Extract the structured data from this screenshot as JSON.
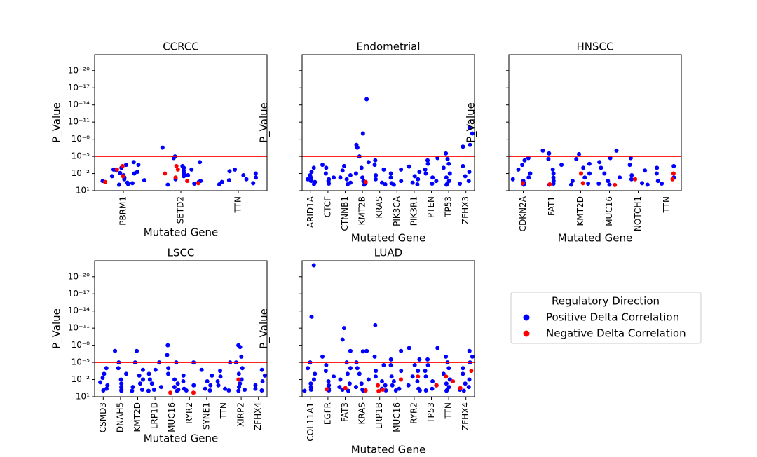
{
  "chart_data": [
    {
      "type": "strip",
      "title": "CCRCC",
      "xlabel": "Mutated Gene",
      "ylabel": "P_Value",
      "log_y": true,
      "inverted_y": true,
      "legend_title": "Regulatory Direction",
      "categories": [
        "PBRM1",
        "SETD2",
        "TTN"
      ],
      "ylim": [
        10,
        1.6e-23
      ],
      "yticks": [
        {
          "value": 1e-20,
          "label": "10⁻²⁰"
        },
        {
          "value": 1e-17,
          "label": "10⁻¹⁷"
        },
        {
          "value": 1e-14,
          "label": "10⁻¹⁴"
        },
        {
          "value": 1e-11,
          "label": "10⁻¹¹"
        },
        {
          "value": 1e-08,
          "label": "10⁻⁸"
        },
        {
          "value": 1e-05,
          "label": "10⁻⁵"
        },
        {
          "value": 0.01,
          "label": "10⁻²"
        },
        {
          "value": 10,
          "label": "10¹"
        }
      ],
      "hline": {
        "value": 1e-05,
        "color": "#ff0000"
      },
      "series": [
        {
          "name": "Positive Delta Correlation",
          "color": "#0000ff",
          "values": [
            [
              0.0001,
              0.0003,
              0.001,
              0.002,
              0.005,
              0.01,
              0.02,
              0.05,
              0.1,
              0.2,
              0.4,
              0.7,
              0.9,
              0.0003,
              0.003,
              0.008,
              0.03,
              0.15,
              0.5
            ],
            [
              3e-07,
              1e-05,
              2e-05,
              0.0001,
              0.0005,
              0.001,
              0.003,
              0.01,
              0.03,
              0.1,
              0.3,
              0.6,
              0.9,
              0.002,
              0.02,
              0.2
            ],
            [
              0.002,
              0.004,
              0.01,
              0.02,
              0.05,
              0.1,
              0.3,
              0.5,
              0.8,
              0.15
            ]
          ]
        },
        {
          "name": "Negative Delta Correlation",
          "color": "#ff0000",
          "values": [
            [
              0.0005,
              0.002,
              0.03,
              0.3
            ],
            [
              0.0005,
              0.002,
              0.01,
              0.05,
              0.2,
              0.5
            ],
            []
          ]
        }
      ]
    },
    {
      "type": "strip",
      "title": "Endometrial",
      "xlabel": "Mutated Gene",
      "ylabel": "P_Value",
      "log_y": true,
      "inverted_y": true,
      "categories": [
        "ARID1A",
        "CTCF",
        "CTNNB1",
        "KMT2B",
        "KRAS",
        "PIK3CA",
        "PIK3R1",
        "PTEN",
        "TP53",
        "ZFHX3"
      ],
      "ylim": [
        10,
        1.6e-23
      ],
      "yticks": [
        1e-20,
        1e-17,
        1e-14,
        1e-11,
        1e-08,
        1e-05,
        0.01,
        10
      ],
      "hline": {
        "value": 1e-05,
        "color": "#ff0000"
      },
      "series": [
        {
          "name": "Positive Delta Correlation",
          "color": "#0000ff",
          "values": [
            [
              0.001,
              0.005,
              0.02,
              0.1,
              0.3,
              0.7,
              0.05,
              0.2
            ],
            [
              0.0003,
              0.001,
              0.01,
              0.05,
              0.2,
              0.6,
              0.1
            ],
            [
              0.0005,
              0.003,
              0.02,
              0.1,
              0.4,
              0.8,
              0.05
            ],
            [
              1e-15,
              1e-09,
              1e-07,
              3e-07,
              1e-05,
              0.0001,
              0.001,
              0.01,
              0.05,
              0.2,
              0.5,
              0.9
            ],
            [
              5e-05,
              0.0003,
              0.002,
              0.02,
              0.1,
              0.4,
              0.8
            ],
            [
              0.002,
              0.01,
              0.05,
              0.2,
              0.5,
              0.9
            ],
            [
              0.0006,
              0.005,
              0.03,
              0.1,
              0.4,
              0.8
            ],
            [
              2e-05,
              5e-05,
              0.0002,
              0.002,
              0.01,
              0.05,
              0.2,
              0.6
            ],
            [
              3e-06,
              3e-05,
              0.0002,
              0.001,
              0.01,
              0.05,
              0.2,
              0.6,
              0.9
            ],
            [
              1e-10,
              1e-09,
              1e-07,
              2e-07,
              0.0005,
              0.005,
              0.03,
              0.2,
              0.6
            ]
          ]
        },
        {
          "name": "Negative Delta Correlation",
          "color": "#ff0000",
          "values": [
            [],
            [],
            [],
            [
              0.3
            ],
            [],
            [],
            [],
            [],
            [],
            []
          ]
        }
      ]
    },
    {
      "type": "strip",
      "title": "HNSCC",
      "xlabel": "Mutated Gene",
      "ylabel": "P_Value",
      "log_y": true,
      "inverted_y": true,
      "categories": [
        "CDKN2A",
        "FAT1",
        "KMT2D",
        "MUC16",
        "NOTCH1",
        "TTN"
      ],
      "ylim": [
        10,
        1.6e-23
      ],
      "yticks": [
        1e-20,
        1e-17,
        1e-14,
        1e-11,
        1e-08,
        1e-05,
        0.01,
        10
      ],
      "hline": {
        "value": 1e-05,
        "color": "#ff0000"
      },
      "series": [
        {
          "name": "Positive Delta Correlation",
          "color": "#0000ff",
          "values": [
            [
              2e-05,
              5e-05,
              0.0003,
              0.002,
              0.01,
              0.05,
              0.2,
              0.5,
              0.9,
              0.1
            ],
            [
              1e-06,
              3e-06,
              3e-05,
              0.0003,
              0.002,
              0.01,
              0.05,
              0.2,
              0.6,
              0.9
            ],
            [
              4e-06,
              3e-05,
              0.0002,
              0.001,
              0.01,
              0.05,
              0.2,
              0.6,
              0.9
            ],
            [
              1e-06,
              2e-05,
              0.0001,
              0.001,
              0.01,
              0.05,
              0.2,
              0.6,
              0.9
            ],
            [
              2e-05,
              0.0003,
              0.003,
              0.02,
              0.1,
              0.5,
              0.9
            ],
            [
              0.0005,
              0.001,
              0.01,
              0.05,
              0.2,
              0.6
            ]
          ]
        },
        {
          "name": "Negative Delta Correlation",
          "color": "#ff0000",
          "values": [
            [
              0.5
            ],
            [
              0.8
            ],
            [
              0.01,
              0.5
            ],
            [
              1
            ],
            [
              0.1
            ],
            [
              0.01,
              0.1
            ]
          ]
        }
      ]
    },
    {
      "type": "strip",
      "title": "LSCC",
      "xlabel": "Mutated Gene",
      "ylabel": "P_Value",
      "log_y": true,
      "inverted_y": true,
      "categories": [
        "CSMD3",
        "DNAH5",
        "KMT2D",
        "LRP1B",
        "MUC16",
        "RYR2",
        "SYNE1",
        "TTN",
        "XIRP2",
        "ZFHX4"
      ],
      "ylim": [
        10,
        1.6e-23
      ],
      "yticks": [
        {
          "value": 1e-20,
          "label": "10⁻²⁰"
        },
        {
          "value": 1e-17,
          "label": "10⁻¹⁷"
        },
        {
          "value": 1e-14,
          "label": "10⁻¹⁴"
        },
        {
          "value": 1e-11,
          "label": "10⁻¹¹"
        },
        {
          "value": 1e-08,
          "label": "10⁻⁸"
        },
        {
          "value": 1e-05,
          "label": "10⁻⁵"
        },
        {
          "value": 0.01,
          "label": "10⁻²"
        },
        {
          "value": 10,
          "label": "10¹"
        }
      ],
      "hline": {
        "value": 1e-05,
        "color": "#ff0000"
      },
      "series": [
        {
          "name": "Positive Delta Correlation",
          "color": "#0000ff",
          "values": [
            [
              0.0001,
              0.001,
              0.005,
              0.03,
              0.1,
              0.4,
              0.8
            ],
            [
              1e-07,
              1e-05,
              0.0001,
              0.001,
              0.01,
              0.05,
              0.2,
              0.6,
              0.9
            ],
            [
              1e-07,
              1e-05,
              0.0002,
              0.002,
              0.01,
              0.05,
              0.2,
              0.6,
              0.9
            ],
            [
              1e-05,
              0.0002,
              0.001,
              0.01,
              0.05,
              0.2,
              0.6,
              0.9
            ],
            [
              1e-08,
              5e-07,
              1e-05,
              0.0001,
              0.001,
              0.01,
              0.05,
              0.2,
              0.6,
              0.9
            ],
            [
              1e-05,
              0.002,
              0.02,
              0.1,
              0.4,
              0.8
            ],
            [
              0.0002,
              0.002,
              0.02,
              0.1,
              0.4,
              0.8
            ],
            [
              1e-05,
              0.0003,
              0.003,
              0.02,
              0.1,
              0.4,
              0.8
            ],
            [
              1e-08,
              2e-08,
              1e-06,
              1e-05,
              0.0001,
              0.001,
              0.01,
              0.05,
              0.2,
              0.6,
              0.9
            ],
            [
              0.0002,
              0.002,
              0.02,
              0.1,
              0.4,
              0.8
            ]
          ]
        },
        {
          "name": "Negative Delta Correlation",
          "color": "#ff0000",
          "values": [
            [],
            [],
            [],
            [],
            [
              2
            ],
            [
              2
            ],
            [],
            [],
            [
              0.01
            ],
            []
          ]
        }
      ]
    },
    {
      "type": "strip",
      "title": "LUAD",
      "xlabel": "Mutated Gene",
      "ylabel": "P_Value",
      "log_y": true,
      "inverted_y": true,
      "categories": [
        "COL11A1",
        "EGFR",
        "FAT3",
        "KRAS",
        "LRP1B",
        "MUC16",
        "RYR2",
        "TP53",
        "TTN",
        "ZFHX4"
      ],
      "ylim": [
        10,
        1.6e-23
      ],
      "yticks": [
        1e-20,
        1e-17,
        1e-14,
        1e-11,
        1e-08,
        1e-05,
        0.01,
        10
      ],
      "hline": {
        "value": 1e-05,
        "color": "#ff0000"
      },
      "series": [
        {
          "name": "Positive Delta Correlation",
          "color": "#0000ff",
          "values": [
            [
              1e-22,
              1e-13,
              1e-05,
              0.0001,
              0.001,
              0.01,
              0.05,
              0.2,
              0.6,
              0.9
            ],
            [
              1e-06,
              3e-05,
              0.0003,
              0.003,
              0.02,
              0.1,
              0.4,
              0.8
            ],
            [
              1e-11,
              1e-09,
              1e-07,
              1e-05,
              0.0001,
              0.001,
              0.01,
              0.05,
              0.2,
              0.6,
              0.9
            ],
            [
              1e-07,
              1.2e-07,
              1e-05,
              0.0001,
              0.001,
              0.01,
              0.05,
              0.2,
              0.6,
              0.9
            ],
            [
              3e-12,
              1e-06,
              3e-05,
              0.0003,
              0.003,
              0.02,
              0.1,
              0.4,
              0.8
            ],
            [
              1e-07,
              3e-06,
              3e-05,
              0.0003,
              0.003,
              0.02,
              0.1,
              0.4,
              0.8
            ],
            [
              3e-08,
              3e-06,
              3e-05,
              0.0003,
              0.003,
              0.02,
              0.1,
              0.4,
              0.8
            ],
            [
              3e-08,
              3e-06,
              3e-05,
              0.0003,
              0.003,
              0.02,
              0.1,
              0.4,
              0.8
            ],
            [
              1e-06,
              1e-05,
              0.0001,
              0.001,
              0.01,
              0.05,
              0.2,
              0.6,
              0.9
            ],
            [
              1e-07,
              1e-06,
              1e-05,
              0.0001,
              0.001,
              0.01,
              0.05,
              0.2,
              0.6,
              0.9
            ]
          ]
        },
        {
          "name": "Negative Delta Correlation",
          "color": "#ff0000",
          "values": [
            [],
            [
              0.5
            ],
            [
              0.3
            ],
            [
              0.8
            ],
            [
              0.1,
              0.6,
              1
            ],
            [
              0.01
            ],
            [
              0.003
            ],
            [
              0.1
            ],
            [
              0.003,
              0.02
            ],
            [
              0.0003,
              0.3
            ]
          ]
        }
      ]
    }
  ]
}
